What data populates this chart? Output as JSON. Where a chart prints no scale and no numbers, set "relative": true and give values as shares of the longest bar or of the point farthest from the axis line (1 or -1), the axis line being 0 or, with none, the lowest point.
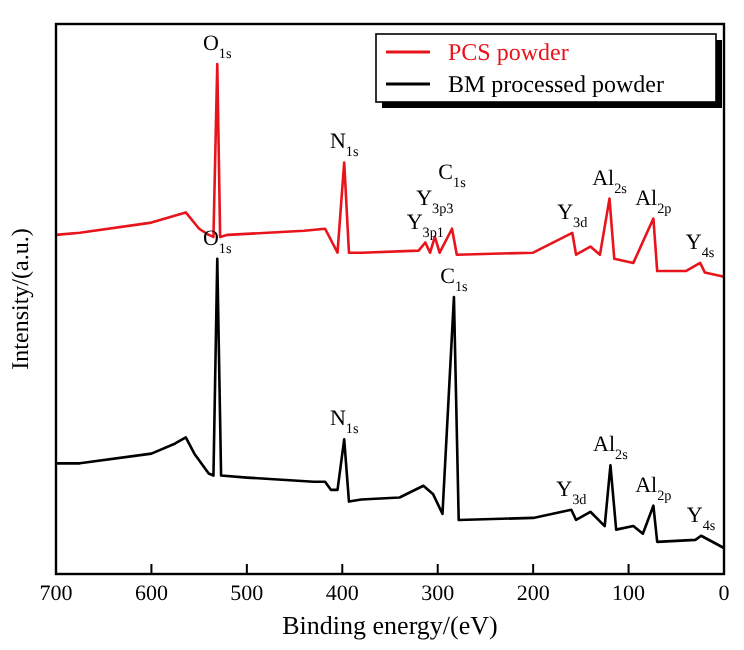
{
  "chart_data": {
    "type": "line",
    "relative": true,
    "xlabel": "Binding energy/(eV)",
    "ylabel": "Intensity/(a.u.)",
    "xlim": [
      700,
      0
    ],
    "xticks": [
      700,
      600,
      500,
      400,
      300,
      200,
      100,
      0
    ],
    "legend": "top right",
    "grid": false,
    "marker": "none",
    "line_style": "solid",
    "series": [
      {
        "name": "PCS powder",
        "color": "#e8141c",
        "x": [
          700,
          675,
          600,
          564,
          550,
          540,
          535,
          531,
          528,
          520,
          440,
          418,
          405,
          398,
          393,
          380,
          320,
          313,
          308,
          303,
          298,
          285,
          280,
          200,
          159,
          155,
          140,
          130,
          120,
          115,
          95,
          74,
          70,
          40,
          25,
          20,
          0
        ],
        "values": [
          0.665,
          0.669,
          0.689,
          0.709,
          0.677,
          0.665,
          0.661,
          1,
          0.661,
          0.665,
          0.673,
          0.677,
          0.63,
          0.807,
          0.63,
          0.63,
          0.634,
          0.65,
          0.63,
          0.661,
          0.63,
          0.677,
          0.626,
          0.63,
          0.669,
          0.626,
          0.642,
          0.626,
          0.736,
          0.618,
          0.61,
          0.697,
          0.594,
          0.594,
          0.61,
          0.591,
          0.583
        ]
      },
      {
        "name": "BM  processed powder",
        "color": "#000000",
        "x": [
          700,
          675,
          600,
          575,
          564,
          555,
          540,
          535,
          531,
          527,
          500,
          430,
          418,
          412,
          405,
          398,
          393,
          380,
          340,
          315,
          305,
          295,
          283,
          278,
          200,
          160,
          155,
          140,
          125,
          119,
          113,
          95,
          85,
          74,
          70,
          30,
          24,
          0
        ],
        "values": [
          0.217,
          0.217,
          0.236,
          0.256,
          0.268,
          0.236,
          0.197,
          0.193,
          0.618,
          0.193,
          0.189,
          0.181,
          0.181,
          0.165,
          0.165,
          0.264,
          0.142,
          0.146,
          0.15,
          0.173,
          0.157,
          0.118,
          0.543,
          0.106,
          0.11,
          0.126,
          0.106,
          0.122,
          0.094,
          0.213,
          0.087,
          0.094,
          0.079,
          0.134,
          0.063,
          0.067,
          0.075,
          0.051
        ]
      }
    ],
    "annotations": [
      {
        "text": "O$_{1s}$",
        "x": 531,
        "y": 1
      },
      {
        "text": "N$_{1s}$",
        "x": 398,
        "y": 0.807
      },
      {
        "text": "Y$_{3p1}$",
        "x": 313,
        "y": 0.65
      },
      {
        "text": "Y$_{3p3}$",
        "x": 303,
        "y": 0.661
      },
      {
        "text": "C$_{1s}$",
        "x": 285,
        "y": 0.677
      },
      {
        "text": "Y$_{3d}$",
        "x": 159,
        "y": 0.669
      },
      {
        "text": "Al$_{2s}$",
        "x": 120,
        "y": 0.736
      },
      {
        "text": "Al$_{2p}$",
        "x": 74,
        "y": 0.697
      },
      {
        "text": "Y$_{4s}$",
        "x": 25,
        "y": 0.61
      },
      {
        "text": "O$_{1s}$",
        "x": 531,
        "y": 0.618
      },
      {
        "text": "N$_{1s}$",
        "x": 398,
        "y": 0.264
      },
      {
        "text": "C$_{1s}$",
        "x": 283,
        "y": 0.543
      },
      {
        "text": "Y$_{3d}$",
        "x": 160,
        "y": 0.126
      },
      {
        "text": "Al$_{2s}$",
        "x": 119,
        "y": 0.213
      },
      {
        "text": "Al$_{2p}$",
        "x": 74,
        "y": 0.134
      },
      {
        "text": "Y$_{4s}$",
        "x": 24,
        "y": 0.075
      }
    ]
  }
}
